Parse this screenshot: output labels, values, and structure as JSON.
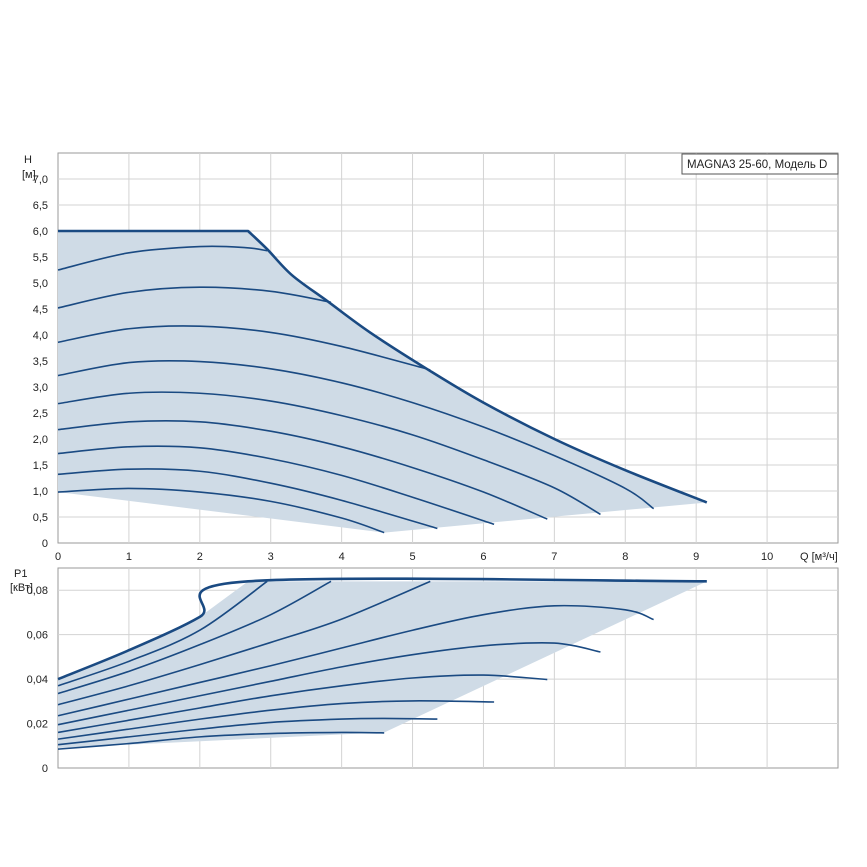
{
  "chart_data": [
    {
      "type": "line",
      "label_text": "MAGNA3 25-60, Модель D",
      "xlabel": "Q [м³/ч]",
      "ylabel_symbol": "H",
      "ylabel_unit": "[м]",
      "xlim": [
        0,
        11
      ],
      "ylim": [
        0,
        7.5
      ],
      "x_ticks": [
        "0",
        "1",
        "2",
        "3",
        "4",
        "5",
        "6",
        "7",
        "8",
        "9",
        "10"
      ],
      "y_ticks": [
        "0",
        "0,5",
        "1,0",
        "1,5",
        "2,0",
        "2,5",
        "3,0",
        "3,5",
        "4,0",
        "4,5",
        "5,0",
        "5,5",
        "6,0",
        "6,5",
        "7,0"
      ],
      "grid": true,
      "colors": {
        "curve": "#1a4a82",
        "fill": "#cfdbe6",
        "grid": "#d3d3d3"
      },
      "envelope_max": [
        [
          0,
          6.0
        ],
        [
          2.68,
          6.0
        ],
        [
          2.95,
          5.65
        ],
        [
          3.3,
          5.15
        ],
        [
          3.8,
          4.65
        ],
        [
          4.4,
          4.05
        ],
        [
          5.2,
          3.35
        ],
        [
          6.0,
          2.7
        ],
        [
          7.0,
          2.0
        ],
        [
          8.0,
          1.4
        ],
        [
          9.15,
          0.78
        ]
      ],
      "envelope_min": [
        [
          4.6,
          0.2
        ],
        [
          9.15,
          0.78
        ]
      ],
      "series": [
        {
          "values": [
            [
              0,
              0.98
            ],
            [
              1.0,
              1.05
            ],
            [
              2.0,
              0.98
            ],
            [
              3.0,
              0.8
            ],
            [
              4.0,
              0.48
            ],
            [
              4.6,
              0.2
            ]
          ]
        },
        {
          "values": [
            [
              0,
              1.32
            ],
            [
              1.0,
              1.42
            ],
            [
              2.0,
              1.38
            ],
            [
              3.0,
              1.15
            ],
            [
              4.0,
              0.82
            ],
            [
              5.35,
              0.28
            ]
          ]
        },
        {
          "values": [
            [
              0,
              1.72
            ],
            [
              1.0,
              1.85
            ],
            [
              2.0,
              1.83
            ],
            [
              3.0,
              1.62
            ],
            [
              4.0,
              1.3
            ],
            [
              5.0,
              0.88
            ],
            [
              6.15,
              0.36
            ]
          ]
        },
        {
          "values": [
            [
              0,
              2.18
            ],
            [
              1.0,
              2.33
            ],
            [
              2.0,
              2.33
            ],
            [
              3.0,
              2.15
            ],
            [
              4.0,
              1.85
            ],
            [
              5.0,
              1.45
            ],
            [
              6.0,
              0.98
            ],
            [
              6.9,
              0.46
            ]
          ]
        },
        {
          "values": [
            [
              0,
              2.68
            ],
            [
              1.0,
              2.88
            ],
            [
              2.0,
              2.88
            ],
            [
              3.0,
              2.73
            ],
            [
              4.0,
              2.45
            ],
            [
              5.0,
              2.08
            ],
            [
              6.0,
              1.6
            ],
            [
              7.0,
              1.06
            ],
            [
              7.65,
              0.55
            ]
          ]
        },
        {
          "values": [
            [
              0,
              3.22
            ],
            [
              1.0,
              3.47
            ],
            [
              2.0,
              3.49
            ],
            [
              3.0,
              3.35
            ],
            [
              4.0,
              3.08
            ],
            [
              5.0,
              2.7
            ],
            [
              6.0,
              2.23
            ],
            [
              7.0,
              1.68
            ],
            [
              8.0,
              1.05
            ],
            [
              8.4,
              0.66
            ]
          ]
        },
        {
          "values": [
            [
              0,
              3.86
            ],
            [
              1.0,
              4.12
            ],
            [
              2.0,
              4.17
            ],
            [
              3.0,
              4.05
            ],
            [
              4.0,
              3.78
            ],
            [
              5.25,
              3.33
            ]
          ]
        },
        {
          "values": [
            [
              0,
              4.52
            ],
            [
              1.0,
              4.82
            ],
            [
              2.0,
              4.92
            ],
            [
              3.0,
              4.84
            ],
            [
              3.85,
              4.63
            ]
          ]
        },
        {
          "values": [
            [
              0,
              5.25
            ],
            [
              1.0,
              5.58
            ],
            [
              2.0,
              5.7
            ],
            [
              2.65,
              5.68
            ],
            [
              2.95,
              5.62
            ]
          ]
        }
      ]
    },
    {
      "type": "line",
      "xlabel": "",
      "ylabel_symbol": "P1",
      "ylabel_unit": "[кВт]",
      "xlim": [
        0,
        11
      ],
      "ylim": [
        0,
        0.09
      ],
      "x_ticks": [],
      "y_ticks": [
        "0",
        "0,02",
        "0,04",
        "0,06",
        "0,08"
      ],
      "grid": true,
      "colors": {
        "curve": "#1a4a82",
        "fill": "#cfdbe6",
        "grid": "#d3d3d3"
      },
      "envelope_max": [
        [
          0,
          0.04
        ],
        [
          1.0,
          0.053
        ],
        [
          2.0,
          0.068
        ],
        [
          2.68,
          0.084
        ],
        [
          9.15,
          0.084
        ]
      ],
      "envelope_min": [
        [
          0,
          0.009
        ],
        [
          4.6,
          0.016
        ],
        [
          9.15,
          0.084
        ]
      ],
      "series": [
        {
          "values": [
            [
              0,
              0.0085
            ],
            [
              1.0,
              0.011
            ],
            [
              2.0,
              0.014
            ],
            [
              3.0,
              0.0155
            ],
            [
              4.0,
              0.016
            ],
            [
              4.6,
              0.0158
            ]
          ]
        },
        {
          "values": [
            [
              0,
              0.0105
            ],
            [
              1.0,
              0.014
            ],
            [
              2.0,
              0.0175
            ],
            [
              3.0,
              0.0205
            ],
            [
              4.0,
              0.022
            ],
            [
              4.6,
              0.0223
            ],
            [
              5.35,
              0.022
            ]
          ]
        },
        {
          "values": [
            [
              0,
              0.013
            ],
            [
              1.0,
              0.0175
            ],
            [
              2.0,
              0.022
            ],
            [
              3.0,
              0.026
            ],
            [
              4.0,
              0.029
            ],
            [
              5.0,
              0.0302
            ],
            [
              6.15,
              0.0297
            ]
          ]
        },
        {
          "values": [
            [
              0,
              0.016
            ],
            [
              1.0,
              0.0215
            ],
            [
              2.0,
              0.027
            ],
            [
              3.0,
              0.0325
            ],
            [
              4.0,
              0.037
            ],
            [
              5.0,
              0.0405
            ],
            [
              6.0,
              0.0418
            ],
            [
              6.9,
              0.0398
            ]
          ]
        },
        {
          "values": [
            [
              0,
              0.0195
            ],
            [
              1.0,
              0.026
            ],
            [
              2.0,
              0.0325
            ],
            [
              3.0,
              0.039
            ],
            [
              4.0,
              0.0455
            ],
            [
              5.0,
              0.051
            ],
            [
              6.0,
              0.055
            ],
            [
              7.0,
              0.0562
            ],
            [
              7.65,
              0.0522
            ]
          ]
        },
        {
          "values": [
            [
              0,
              0.0235
            ],
            [
              1.0,
              0.031
            ],
            [
              2.0,
              0.0385
            ],
            [
              3.0,
              0.046
            ],
            [
              4.0,
              0.054
            ],
            [
              5.0,
              0.062
            ],
            [
              6.0,
              0.069
            ],
            [
              7.0,
              0.073
            ],
            [
              8.0,
              0.0712
            ],
            [
              8.4,
              0.0668
            ]
          ]
        },
        {
          "values": [
            [
              0,
              0.0285
            ],
            [
              1.0,
              0.037
            ],
            [
              2.0,
              0.0465
            ],
            [
              3.0,
              0.0565
            ],
            [
              4.0,
              0.067
            ],
            [
              5.25,
              0.084
            ]
          ]
        },
        {
          "values": [
            [
              0,
              0.0335
            ],
            [
              1.0,
              0.0435
            ],
            [
              2.0,
              0.0555
            ],
            [
              3.0,
              0.069
            ],
            [
              3.85,
              0.084
            ]
          ]
        },
        {
          "values": [
            [
              0,
              0.037
            ],
            [
              1.0,
              0.048
            ],
            [
              2.0,
              0.062
            ],
            [
              2.95,
              0.084
            ]
          ]
        }
      ]
    }
  ]
}
